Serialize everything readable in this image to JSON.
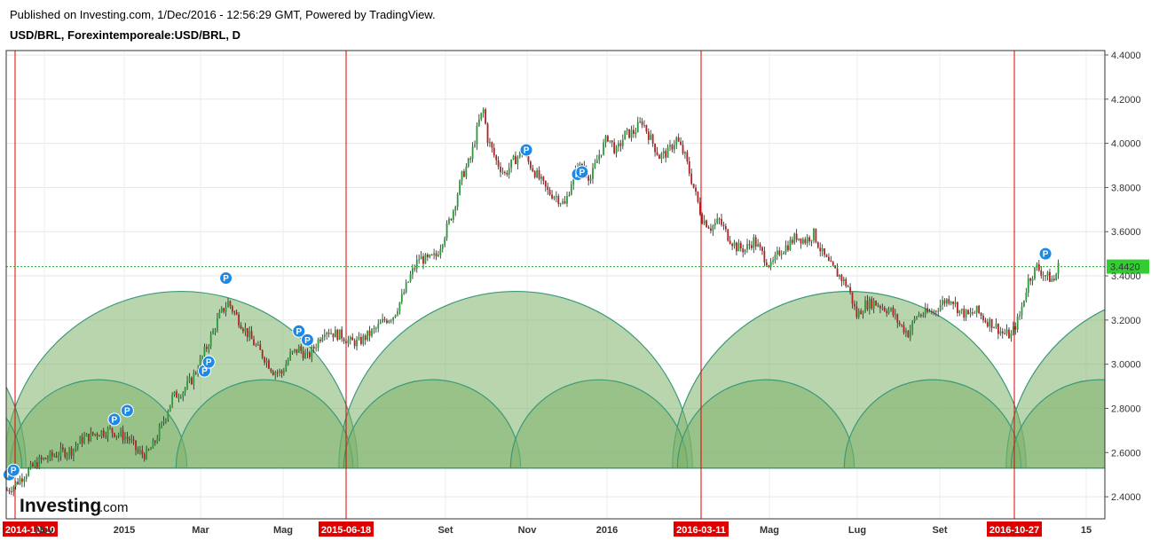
{
  "header": {
    "published": "Published on Investing.com, 1/Dec/2016 - 12:56:29 GMT, Powered by TradingView.",
    "symbol": "USD/BRL, Forexintemporeale:USD/BRL, D"
  },
  "logo": {
    "main": "Investing",
    "suffix": ".com"
  },
  "colors": {
    "up": "#2a9a3a",
    "down": "#b22222",
    "wick": "#222222",
    "arc_fill": "#7fb36b",
    "arc_edge": "#3a9a78",
    "vline": "#dd0000",
    "last_price": "#22aa22",
    "pin": "#1e88e5"
  },
  "chart_data": {
    "type": "candlestick",
    "title": "USD/BRL, Forexintemporeale:USD/BRL, D",
    "ylim": [
      2.3,
      4.42
    ],
    "y_ticks": [
      "4.4000",
      "4.2000",
      "4.0000",
      "3.8000",
      "3.6000",
      "3.4000",
      "3.2000",
      "3.0000",
      "2.8000",
      "2.6000",
      "2.4000"
    ],
    "x_ticks": [
      "Nov",
      "2015",
      "Mar",
      "Mag",
      "Set",
      "Nov",
      "2016",
      "Mag",
      "Lug",
      "Set",
      "15"
    ],
    "last_price": "3.4420",
    "vertical_markers": [
      "2014-10-10",
      "2015-06-18",
      "2016-03-11",
      "2016-10-27"
    ],
    "arc_base": 2.53,
    "arc_levels": {
      "large_top": 3.33,
      "small_top": 2.93,
      "edge_top": 3.24
    },
    "price_path": [
      [
        0,
        2.43
      ],
      [
        3,
        2.45
      ],
      [
        5,
        2.47
      ],
      [
        9,
        2.51
      ],
      [
        15,
        2.56
      ],
      [
        20,
        2.58
      ],
      [
        25,
        2.6
      ],
      [
        30,
        2.61
      ],
      [
        35,
        2.66
      ],
      [
        42,
        2.69
      ],
      [
        48,
        2.7
      ],
      [
        53,
        2.68
      ],
      [
        57,
        2.66
      ],
      [
        61,
        2.6
      ],
      [
        65,
        2.59
      ],
      [
        68,
        2.63
      ],
      [
        72,
        2.72
      ],
      [
        77,
        2.85
      ],
      [
        82,
        2.88
      ],
      [
        86,
        2.93
      ],
      [
        90,
        3.01
      ],
      [
        94,
        3.1
      ],
      [
        99,
        3.22
      ],
      [
        103,
        3.28
      ],
      [
        108,
        3.2
      ],
      [
        112,
        3.14
      ],
      [
        116,
        3.08
      ],
      [
        120,
        3.03
      ],
      [
        124,
        2.97
      ],
      [
        128,
        2.96
      ],
      [
        132,
        3.04
      ],
      [
        136,
        3.07
      ],
      [
        140,
        3.03
      ],
      [
        144,
        3.09
      ],
      [
        148,
        3.16
      ],
      [
        152,
        3.14
      ],
      [
        156,
        3.13
      ],
      [
        160,
        3.1
      ],
      [
        164,
        3.1
      ],
      [
        168,
        3.13
      ],
      [
        172,
        3.16
      ],
      [
        176,
        3.2
      ],
      [
        180,
        3.22
      ],
      [
        184,
        3.3
      ],
      [
        188,
        3.4
      ],
      [
        192,
        3.48
      ],
      [
        196,
        3.47
      ],
      [
        200,
        3.49
      ],
      [
        204,
        3.59
      ],
      [
        208,
        3.7
      ],
      [
        212,
        3.85
      ],
      [
        216,
        3.93
      ],
      [
        220,
        4.1
      ],
      [
        222,
        4.15
      ],
      [
        224,
        4.02
      ],
      [
        228,
        3.92
      ],
      [
        232,
        3.86
      ],
      [
        236,
        3.92
      ],
      [
        240,
        3.96
      ],
      [
        244,
        3.9
      ],
      [
        248,
        3.84
      ],
      [
        252,
        3.78
      ],
      [
        256,
        3.76
      ],
      [
        260,
        3.72
      ],
      [
        264,
        3.86
      ],
      [
        268,
        3.9
      ],
      [
        272,
        3.84
      ],
      [
        276,
        3.95
      ],
      [
        280,
        4.03
      ],
      [
        284,
        3.96
      ],
      [
        288,
        4.04
      ],
      [
        292,
        4.05
      ],
      [
        296,
        4.1
      ],
      [
        300,
        4.02
      ],
      [
        304,
        3.94
      ],
      [
        308,
        3.96
      ],
      [
        312,
        4.02
      ],
      [
        316,
        3.94
      ],
      [
        320,
        3.8
      ],
      [
        324,
        3.66
      ],
      [
        328,
        3.62
      ],
      [
        332,
        3.65
      ],
      [
        336,
        3.58
      ],
      [
        340,
        3.53
      ],
      [
        344,
        3.52
      ],
      [
        348,
        3.56
      ],
      [
        352,
        3.5
      ],
      [
        356,
        3.44
      ],
      [
        360,
        3.51
      ],
      [
        364,
        3.54
      ],
      [
        368,
        3.58
      ],
      [
        372,
        3.56
      ],
      [
        376,
        3.59
      ],
      [
        380,
        3.5
      ],
      [
        384,
        3.44
      ],
      [
        388,
        3.4
      ],
      [
        392,
        3.35
      ],
      [
        396,
        3.22
      ],
      [
        400,
        3.27
      ],
      [
        404,
        3.28
      ],
      [
        408,
        3.26
      ],
      [
        412,
        3.24
      ],
      [
        416,
        3.18
      ],
      [
        420,
        3.14
      ],
      [
        424,
        3.22
      ],
      [
        428,
        3.23
      ],
      [
        432,
        3.24
      ],
      [
        436,
        3.28
      ],
      [
        440,
        3.3
      ],
      [
        444,
        3.24
      ],
      [
        448,
        3.22
      ],
      [
        452,
        3.24
      ],
      [
        456,
        3.2
      ],
      [
        460,
        3.18
      ],
      [
        464,
        3.14
      ],
      [
        468,
        3.13
      ],
      [
        472,
        3.22
      ],
      [
        476,
        3.38
      ],
      [
        480,
        3.44
      ],
      [
        484,
        3.4
      ],
      [
        488,
        3.38
      ],
      [
        490,
        3.442
      ]
    ],
    "p_markers": [
      {
        "i": 1,
        "y": 2.5
      },
      {
        "i": 3,
        "y": 2.52
      },
      {
        "i": 50,
        "y": 2.75
      },
      {
        "i": 56,
        "y": 2.79
      },
      {
        "i": 92,
        "y": 2.97
      },
      {
        "i": 94,
        "y": 3.01
      },
      {
        "i": 102,
        "y": 3.39
      },
      {
        "i": 136,
        "y": 3.15
      },
      {
        "i": 140,
        "y": 3.11
      },
      {
        "i": 242,
        "y": 3.97
      },
      {
        "i": 266,
        "y": 3.86
      },
      {
        "i": 268,
        "y": 3.87
      },
      {
        "i": 484,
        "y": 3.5
      }
    ]
  }
}
